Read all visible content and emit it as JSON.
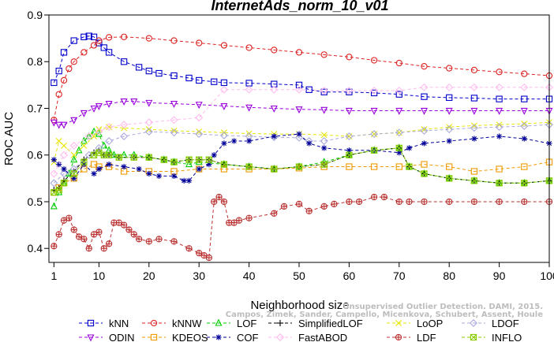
{
  "chart_data": {
    "type": "line",
    "title": "InternetAds_norm_10_v01",
    "xlabel": "Neighborhood size",
    "ylabel": "ROC AUC",
    "xlim": [
      0,
      100
    ],
    "ylim": [
      0.37,
      0.9
    ],
    "xticks": [
      1,
      10,
      20,
      30,
      40,
      50,
      60,
      70,
      80,
      90,
      100
    ],
    "yticks": [
      0.4,
      0.5,
      0.6,
      0.7,
      0.8,
      0.9
    ],
    "grid": false,
    "legend_position": "bottom",
    "credit_line1": "Unsupervised Outlier Detection. DAMI, 2015.",
    "credit_line2": "Campos, Zimek, Sander, Campello, Micenkova, Schubert, Assent, Houle",
    "series": [
      {
        "name": "kNN",
        "color": "#0000cc",
        "marker": "square",
        "dash": "4,3",
        "x": [
          1,
          2,
          3,
          5,
          7,
          8,
          9,
          10,
          11,
          12,
          15,
          18,
          20,
          22,
          25,
          28,
          30,
          33,
          35,
          40,
          45,
          50,
          52,
          55,
          60,
          65,
          70,
          75,
          80,
          85,
          90,
          95,
          100
        ],
        "y": [
          0.755,
          0.78,
          0.82,
          0.845,
          0.853,
          0.855,
          0.853,
          0.84,
          0.83,
          0.82,
          0.8,
          0.788,
          0.78,
          0.775,
          0.77,
          0.765,
          0.76,
          0.757,
          0.755,
          0.754,
          0.752,
          0.75,
          0.74,
          0.735,
          0.735,
          0.733,
          0.73,
          0.725,
          0.723,
          0.722,
          0.72,
          0.72,
          0.72
        ]
      },
      {
        "name": "kNNW",
        "color": "#dd2222",
        "marker": "circle",
        "dash": "4,3",
        "x": [
          1,
          2,
          3,
          4,
          5,
          7,
          9,
          10,
          12,
          15,
          20,
          25,
          30,
          35,
          40,
          45,
          50,
          55,
          60,
          65,
          70,
          75,
          80,
          85,
          90,
          95,
          100
        ],
        "y": [
          0.675,
          0.73,
          0.76,
          0.785,
          0.8,
          0.82,
          0.835,
          0.845,
          0.852,
          0.853,
          0.85,
          0.845,
          0.84,
          0.835,
          0.83,
          0.825,
          0.82,
          0.815,
          0.81,
          0.803,
          0.797,
          0.79,
          0.786,
          0.782,
          0.778,
          0.774,
          0.77
        ]
      },
      {
        "name": "LOF",
        "color": "#00cc00",
        "marker": "triangle-up",
        "dash": "4,3",
        "x": [
          1,
          2,
          3,
          4,
          5,
          6,
          7,
          8,
          9,
          10,
          11,
          12,
          13,
          15,
          17,
          20,
          23,
          25,
          28,
          30,
          35,
          40,
          45,
          50,
          55,
          60,
          65,
          70,
          72,
          75,
          80,
          85,
          90,
          95,
          100
        ],
        "y": [
          0.49,
          0.52,
          0.54,
          0.56,
          0.59,
          0.61,
          0.63,
          0.64,
          0.65,
          0.645,
          0.62,
          0.61,
          0.6,
          0.6,
          0.6,
          0.595,
          0.59,
          0.585,
          0.58,
          0.585,
          0.58,
          0.575,
          0.57,
          0.575,
          0.585,
          0.6,
          0.61,
          0.615,
          0.575,
          0.56,
          0.55,
          0.545,
          0.54,
          0.54,
          0.545
        ]
      },
      {
        "name": "SimplifiedLOF",
        "color": "#000000",
        "marker": "plus",
        "dash": "4,3",
        "x": [
          1,
          2,
          3,
          5,
          7,
          9,
          10,
          11,
          12,
          14,
          17,
          20,
          23,
          25,
          28,
          30,
          32,
          35,
          40,
          45,
          50,
          55,
          60,
          65,
          70,
          72,
          75,
          80,
          85,
          90,
          95,
          100
        ],
        "y": [
          0.525,
          0.53,
          0.545,
          0.565,
          0.59,
          0.605,
          0.61,
          0.6,
          0.6,
          0.595,
          0.595,
          0.595,
          0.59,
          0.585,
          0.59,
          0.59,
          0.59,
          0.58,
          0.575,
          0.57,
          0.575,
          0.58,
          0.6,
          0.61,
          0.615,
          0.575,
          0.56,
          0.55,
          0.545,
          0.54,
          0.54,
          0.545
        ]
      },
      {
        "name": "LoOP",
        "color": "#e6e600",
        "marker": "x",
        "dash": "4,3",
        "x": [
          1,
          2,
          3,
          5,
          7,
          9,
          10,
          12,
          15,
          20,
          25,
          30,
          35,
          40,
          45,
          50,
          55,
          60,
          65,
          70,
          75,
          80,
          85,
          90,
          95,
          100
        ],
        "y": [
          0.585,
          0.63,
          0.62,
          0.6,
          0.62,
          0.64,
          0.655,
          0.66,
          0.658,
          0.655,
          0.652,
          0.65,
          0.648,
          0.646,
          0.645,
          0.645,
          0.643,
          0.64,
          0.645,
          0.648,
          0.655,
          0.66,
          0.663,
          0.665,
          0.667,
          0.67
        ]
      },
      {
        "name": "LDOF",
        "color": "#aaaadd",
        "marker": "diamond",
        "dash": "4,3",
        "x": [
          1,
          3,
          5,
          8,
          10,
          12,
          15,
          20,
          25,
          30,
          35,
          40,
          45,
          50,
          52,
          55,
          60,
          65,
          70,
          75,
          80,
          85,
          90,
          95,
          100
        ],
        "y": [
          0.54,
          0.56,
          0.57,
          0.6,
          0.615,
          0.63,
          0.64,
          0.65,
          0.648,
          0.645,
          0.642,
          0.64,
          0.638,
          0.637,
          0.63,
          0.63,
          0.64,
          0.645,
          0.648,
          0.652,
          0.655,
          0.658,
          0.66,
          0.662,
          0.665
        ]
      },
      {
        "name": "ODIN",
        "color": "#9900dd",
        "marker": "triangle-down",
        "dash": "4,3",
        "x": [
          1,
          2,
          3,
          5,
          7,
          9,
          10,
          12,
          15,
          17,
          20,
          25,
          30,
          35,
          40,
          45,
          50,
          55,
          60,
          65,
          70,
          75,
          80,
          85,
          90,
          95,
          100
        ],
        "y": [
          0.67,
          0.665,
          0.665,
          0.675,
          0.69,
          0.7,
          0.705,
          0.71,
          0.715,
          0.715,
          0.712,
          0.71,
          0.708,
          0.705,
          0.702,
          0.7,
          0.698,
          0.697,
          0.695,
          0.695,
          0.695,
          0.695,
          0.695,
          0.695,
          0.695,
          0.695,
          0.695
        ]
      },
      {
        "name": "KDEOS",
        "color": "#ee9900",
        "marker": "square",
        "dash": "4,3",
        "x": [
          1,
          2,
          3,
          5,
          7,
          9,
          10,
          12,
          15,
          20,
          25,
          30,
          35,
          40,
          45,
          50,
          55,
          60,
          65,
          70,
          75,
          80,
          85,
          90,
          95,
          100
        ],
        "y": [
          0.52,
          0.53,
          0.54,
          0.55,
          0.57,
          0.58,
          0.575,
          0.575,
          0.565,
          0.565,
          0.565,
          0.57,
          0.57,
          0.57,
          0.57,
          0.572,
          0.575,
          0.575,
          0.575,
          0.575,
          0.58,
          0.575,
          0.565,
          0.57,
          0.575,
          0.585
        ]
      },
      {
        "name": "COF",
        "color": "#000099",
        "marker": "asterisk",
        "dash": "4,3",
        "x": [
          1,
          2,
          3,
          5,
          7,
          9,
          10,
          12,
          15,
          18,
          20,
          22,
          25,
          27,
          28,
          30,
          32,
          33,
          35,
          37,
          40,
          45,
          50,
          52,
          55,
          60,
          65,
          70,
          72,
          75,
          80,
          85,
          90,
          95,
          100
        ],
        "y": [
          0.59,
          0.58,
          0.57,
          0.55,
          0.58,
          0.56,
          0.57,
          0.58,
          0.575,
          0.57,
          0.56,
          0.555,
          0.555,
          0.545,
          0.545,
          0.57,
          0.58,
          0.6,
          0.625,
          0.63,
          0.63,
          0.64,
          0.645,
          0.625,
          0.615,
          0.61,
          0.61,
          0.605,
          0.615,
          0.625,
          0.63,
          0.635,
          0.64,
          0.635,
          0.625
        ]
      },
      {
        "name": "FastABOD",
        "color": "#ffbbee",
        "marker": "diamond",
        "dash": "4,3",
        "x": [
          1,
          3,
          5,
          8,
          10,
          12,
          15,
          20,
          25,
          30,
          35,
          40,
          45,
          50,
          55,
          60,
          65,
          70,
          75,
          80,
          85,
          90,
          95,
          100
        ],
        "y": [
          0.56,
          0.6,
          0.62,
          0.64,
          0.65,
          0.66,
          0.665,
          0.67,
          0.675,
          0.68,
          0.74,
          0.74,
          0.74,
          0.74,
          0.738,
          0.738,
          0.738,
          0.738,
          0.745,
          0.745,
          0.745,
          0.745,
          0.745,
          0.745
        ]
      },
      {
        "name": "LDF",
        "color": "#bb3333",
        "marker": "circle-plus",
        "dash": "4,3",
        "x": [
          1,
          2,
          3,
          4,
          5,
          6,
          7,
          8,
          9,
          10,
          11,
          12,
          13,
          14,
          15,
          16,
          17,
          18,
          20,
          22,
          25,
          28,
          30,
          31,
          32,
          33,
          34,
          35,
          36,
          37,
          38,
          40,
          45,
          47,
          50,
          52,
          55,
          57,
          60,
          62,
          65,
          67,
          70,
          72,
          75,
          80,
          85,
          90,
          95,
          100
        ],
        "y": [
          0.405,
          0.43,
          0.46,
          0.465,
          0.44,
          0.425,
          0.42,
          0.4,
          0.43,
          0.435,
          0.4,
          0.41,
          0.455,
          0.455,
          0.45,
          0.44,
          0.43,
          0.42,
          0.415,
          0.42,
          0.415,
          0.4,
          0.39,
          0.385,
          0.38,
          0.5,
          0.51,
          0.5,
          0.455,
          0.455,
          0.46,
          0.465,
          0.475,
          0.49,
          0.495,
          0.48,
          0.49,
          0.495,
          0.5,
          0.5,
          0.51,
          0.51,
          0.5,
          0.5,
          0.5,
          0.5,
          0.5,
          0.5,
          0.5,
          0.5
        ]
      },
      {
        "name": "INFLO",
        "color": "#88cc00",
        "marker": "square-x",
        "dash": "4,3",
        "x": [
          1,
          2,
          3,
          5,
          7,
          9,
          10,
          11,
          12,
          14,
          17,
          20,
          23,
          25,
          28,
          30,
          32,
          35,
          40,
          45,
          50,
          55,
          60,
          65,
          70,
          72,
          75,
          80,
          85,
          90,
          95,
          100
        ],
        "y": [
          0.52,
          0.525,
          0.54,
          0.56,
          0.585,
          0.6,
          0.605,
          0.6,
          0.6,
          0.595,
          0.595,
          0.595,
          0.59,
          0.585,
          0.59,
          0.59,
          0.59,
          0.58,
          0.575,
          0.57,
          0.575,
          0.58,
          0.6,
          0.61,
          0.615,
          0.575,
          0.56,
          0.55,
          0.545,
          0.54,
          0.54,
          0.545
        ]
      }
    ]
  }
}
